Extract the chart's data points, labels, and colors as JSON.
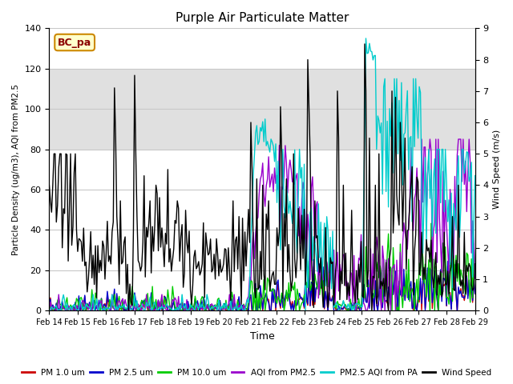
{
  "title": "Purple Air Particulate Matter",
  "xlabel": "Time",
  "ylabel_left": "Particle Density (ug/m3), AQI from PM2.5",
  "ylabel_right": "Wind Speed (m/s)",
  "annotation_text": "BC_pa",
  "ylim_left": [
    0,
    140
  ],
  "ylim_right": [
    0.0,
    9.0
  ],
  "yticks_left": [
    0,
    20,
    40,
    60,
    80,
    100,
    120,
    140
  ],
  "yticks_right": [
    0.0,
    1.0,
    2.0,
    3.0,
    4.0,
    5.0,
    6.0,
    7.0,
    8.0,
    9.0
  ],
  "shaded_region": [
    80,
    120
  ],
  "series": {
    "pm1": {
      "color": "#cc0000",
      "label": "PM 1.0 um"
    },
    "pm25": {
      "color": "#0000cc",
      "label": "PM 2.5 um"
    },
    "pm10": {
      "color": "#00cc00",
      "label": "PM 10.0 um"
    },
    "aqi_pm25": {
      "color": "#9900cc",
      "label": "AQI from PM2.5"
    },
    "pm25_aqi_pa": {
      "color": "#00cccc",
      "label": "PM2.5 AQI from PA"
    },
    "wind": {
      "color": "#000000",
      "label": "Wind Speed"
    }
  },
  "xtick_labels": [
    "Feb 14",
    "Feb 15",
    "Feb 16",
    "Feb 17",
    "Feb 18",
    "Feb 19",
    "Feb 20",
    "Feb 21",
    "Feb 22",
    "Feb 23",
    "Feb 24",
    "Feb 25",
    "Feb 26",
    "Feb 27",
    "Feb 28",
    "Feb 29"
  ],
  "background_color": "#ffffff",
  "shaded_color": "#e0e0e0",
  "grid_color": "#c8c8c8"
}
